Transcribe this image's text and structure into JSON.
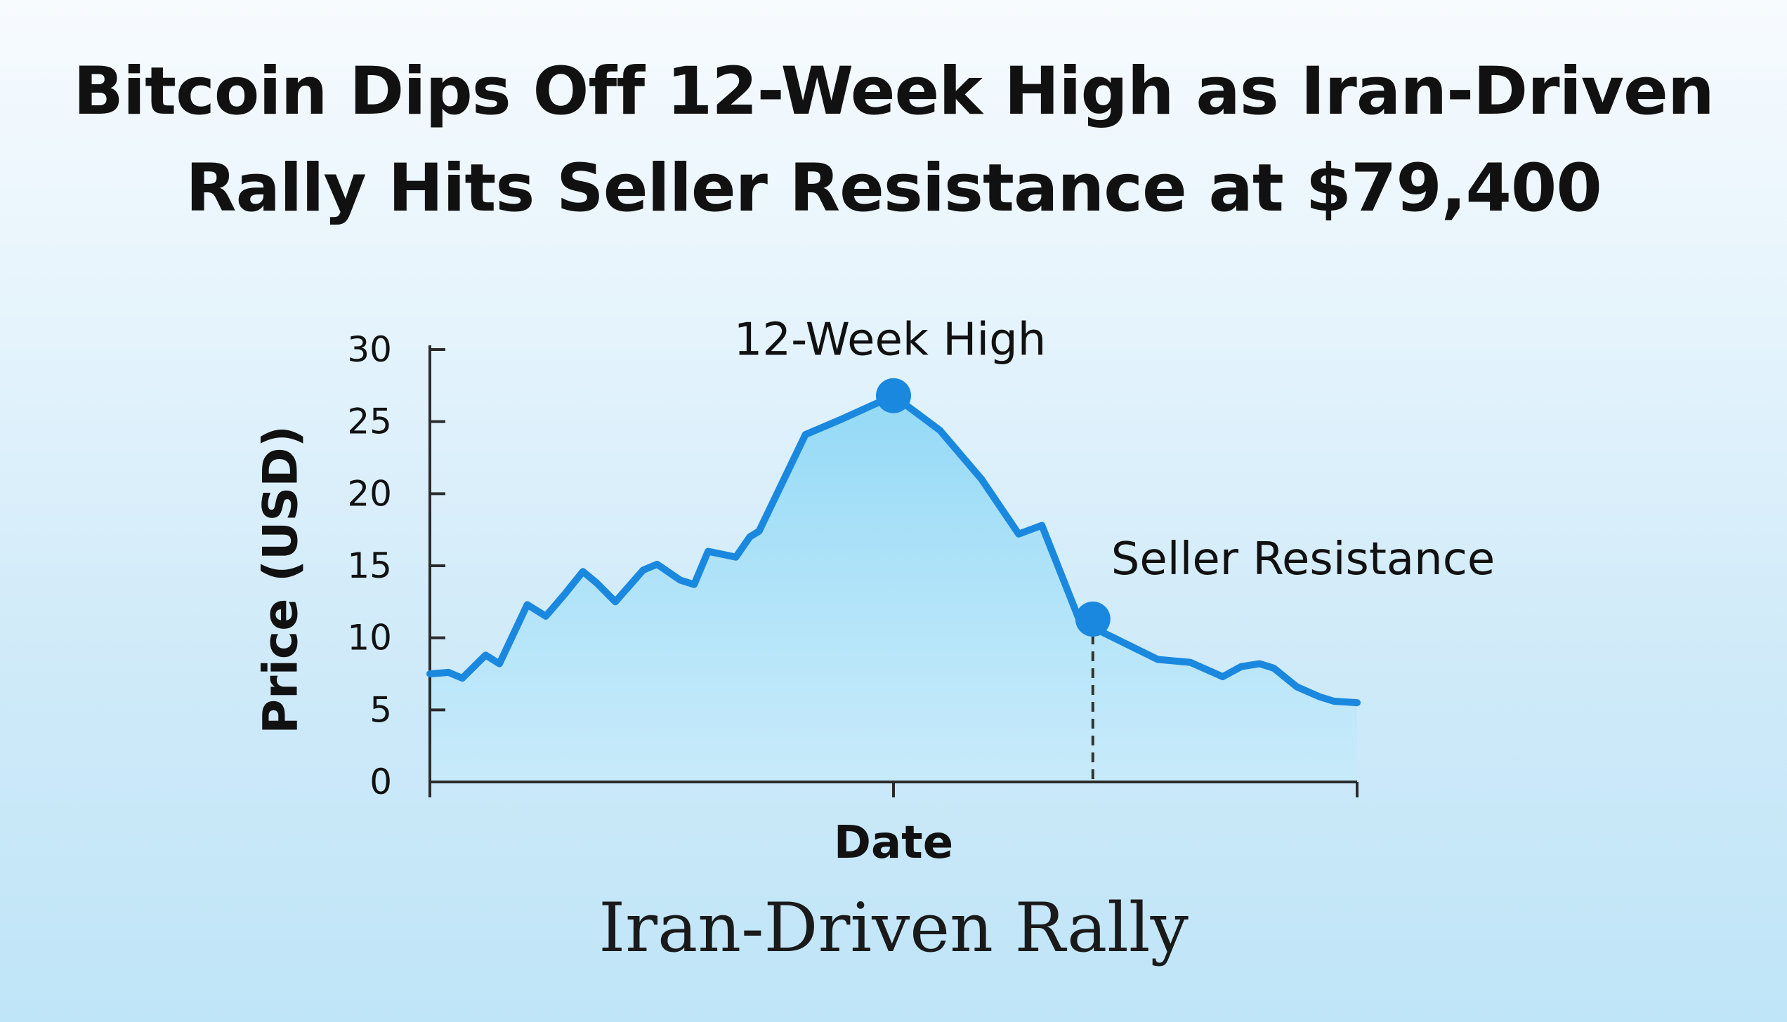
{
  "headline": {
    "line1": "Bitcoin Dips Off 12-Week High as Iran-Driven",
    "line2": "Rally Hits Seller Resistance at $79,400"
  },
  "subtitle": "Iran-Driven Rally",
  "chart_data": {
    "type": "area",
    "title": "Bitcoin Dips Off 12-Week High as Iran-Driven Rally Hits Seller Resistance at $79,400",
    "subtitle": "Iran-Driven Rally",
    "xlabel": "Date",
    "ylabel": "Price (USD)",
    "xlim": [
      0,
      100
    ],
    "ylim": [
      0,
      30
    ],
    "yticks": [
      0,
      5,
      10,
      15,
      20,
      25,
      30
    ],
    "grid": false,
    "series": [
      {
        "x": [
          0,
          2,
          3.5,
          6,
          7.5,
          10.5,
          12.5,
          14.5,
          16.5,
          18,
          20,
          23,
          24.5,
          27,
          28.5,
          30,
          33,
          34.5,
          35.5,
          40.5,
          44.5,
          50,
          55,
          59.5,
          63.5,
          66,
          70,
          72.5,
          78.5,
          82,
          85.5,
          87.5,
          89.5,
          91,
          93.5,
          96,
          97.5,
          100
        ],
        "y": [
          7.5,
          7.6,
          7.2,
          8.8,
          8.2,
          12.3,
          11.5,
          13,
          14.6,
          13.8,
          12.5,
          14.7,
          15.1,
          14,
          13.7,
          16,
          15.6,
          17,
          17.4,
          24.1,
          25.2,
          26.8,
          24.4,
          21,
          17.2,
          17.8,
          11.3,
          10.4,
          8.5,
          8.3,
          7.3,
          8,
          8.2,
          7.9,
          6.6,
          5.9,
          5.6,
          5.5
        ]
      }
    ],
    "annotations": [
      {
        "label": "12-Week High",
        "x": 50,
        "y": 26.8
      },
      {
        "label": "Seller Resistance",
        "x": 71.5,
        "y": 11.3
      }
    ],
    "colors": {
      "line": "#1a88df",
      "fill_top": "#8fd8f6",
      "fill_bottom": "#c6ebfb",
      "axis": "#2b2b2b",
      "text": "#111111"
    }
  }
}
